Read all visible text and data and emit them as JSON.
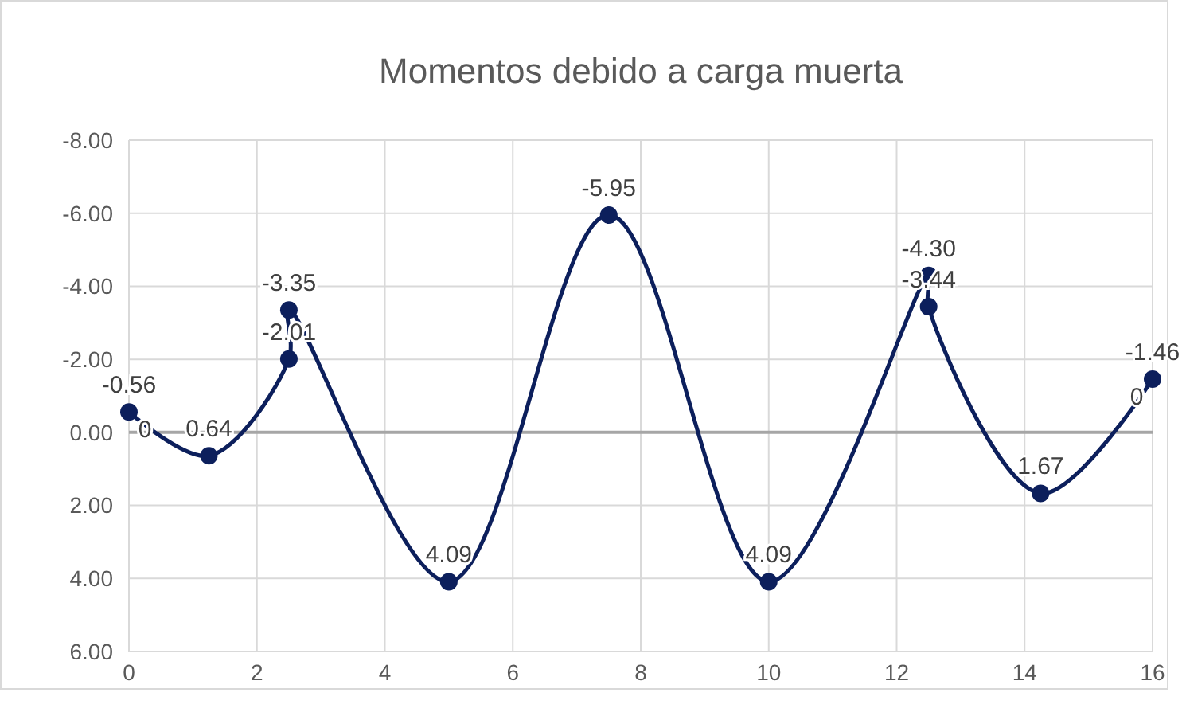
{
  "chart_data": {
    "type": "line",
    "title": "Momentos debido a carga muerta",
    "series": [
      {
        "color": "#0c1f5c",
        "x": [
          0,
          1.25,
          2.5,
          2.5,
          5,
          7.5,
          10,
          12.5,
          12.5,
          14.25,
          16
        ],
        "values": [
          -0.56,
          0.64,
          -2.01,
          -3.35,
          4.09,
          -5.95,
          4.09,
          -4.3,
          -3.44,
          1.67,
          -1.46
        ],
        "value_labels": [
          "-0.56",
          "0.64",
          "-2.01",
          "-3.35",
          "4.09",
          "-5.95",
          "4.09",
          "-4.30",
          "-3.44",
          "1.67",
          "-1.46"
        ]
      }
    ],
    "xlim": [
      0,
      16
    ],
    "xticks": [
      0,
      2,
      4,
      6,
      8,
      10,
      12,
      14,
      16
    ],
    "ylim": [
      6,
      -8
    ],
    "yticks": [
      {
        "value": -8,
        "label": "-8.00"
      },
      {
        "value": -6,
        "label": "-6.00"
      },
      {
        "value": -4,
        "label": "-4.00"
      },
      {
        "value": -2,
        "label": "-2.00"
      },
      {
        "value": 0,
        "label": "0.00"
      },
      {
        "value": 2,
        "label": "2.00"
      },
      {
        "value": 4,
        "label": "4.00"
      },
      {
        "value": 6,
        "label": "6.00"
      }
    ],
    "annotations": [
      {
        "text": "0",
        "x": 0,
        "y": -0.56
      },
      {
        "text": "0",
        "x": 16,
        "y": -1.46
      }
    ],
    "grid": true,
    "marker": "circle",
    "line_style": "solid"
  }
}
